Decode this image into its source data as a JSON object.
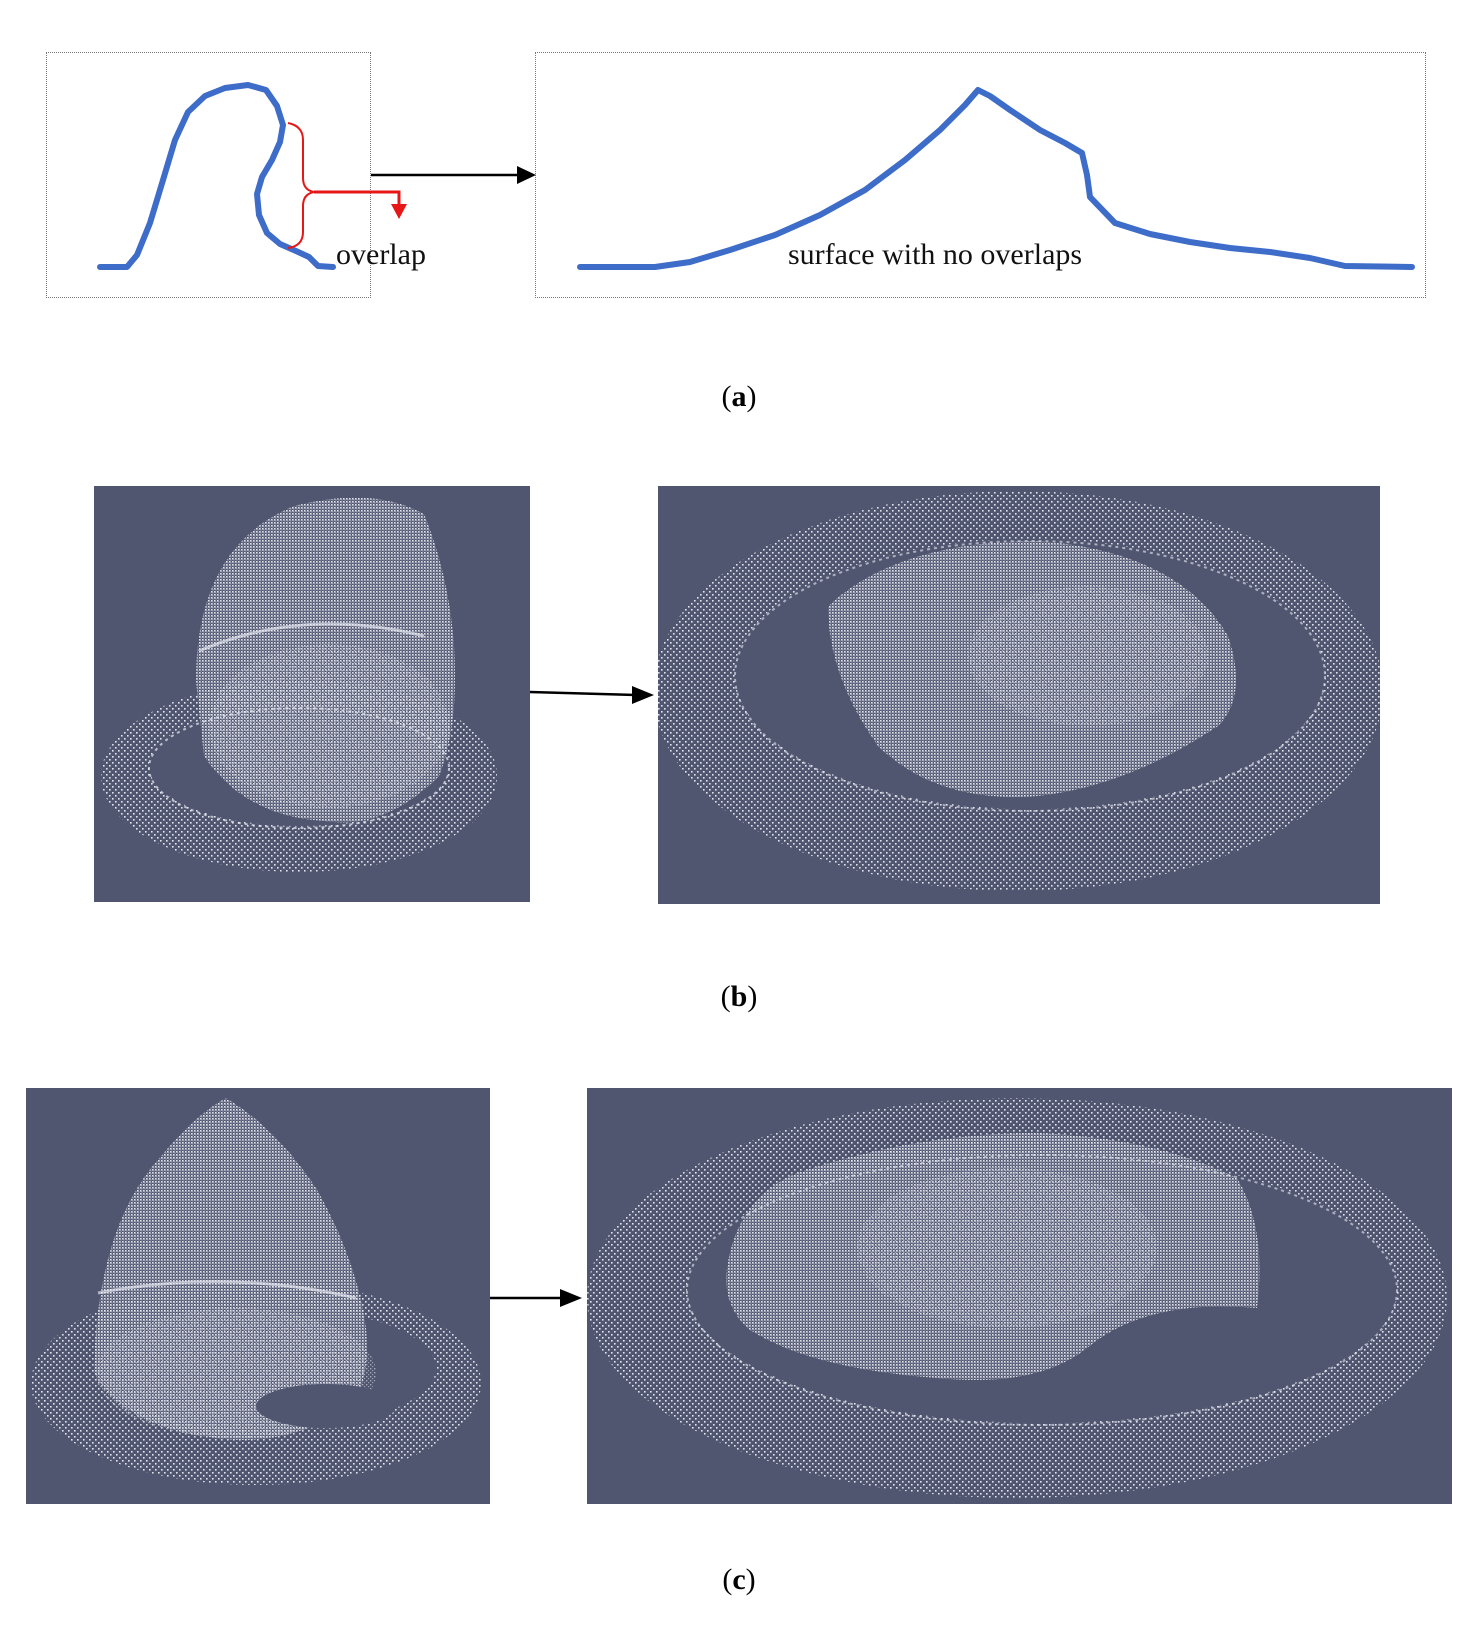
{
  "panel_a": {
    "overlap_label": "overlap",
    "no_overlap_label": "surface with no overlaps",
    "caption_letter": "a"
  },
  "panel_b": {
    "caption_letter": "b"
  },
  "panel_c": {
    "caption_letter": "c"
  },
  "colors": {
    "profile_line": "#3d6cc9",
    "overlap_marker": "#e81717",
    "point_cloud_bg": "#515670",
    "point_cloud_points": "#e9ecf5",
    "arrow": "#000000"
  },
  "icons": {
    "arrow": "right-arrow-icon",
    "red_arrow": "down-arrow-icon"
  }
}
